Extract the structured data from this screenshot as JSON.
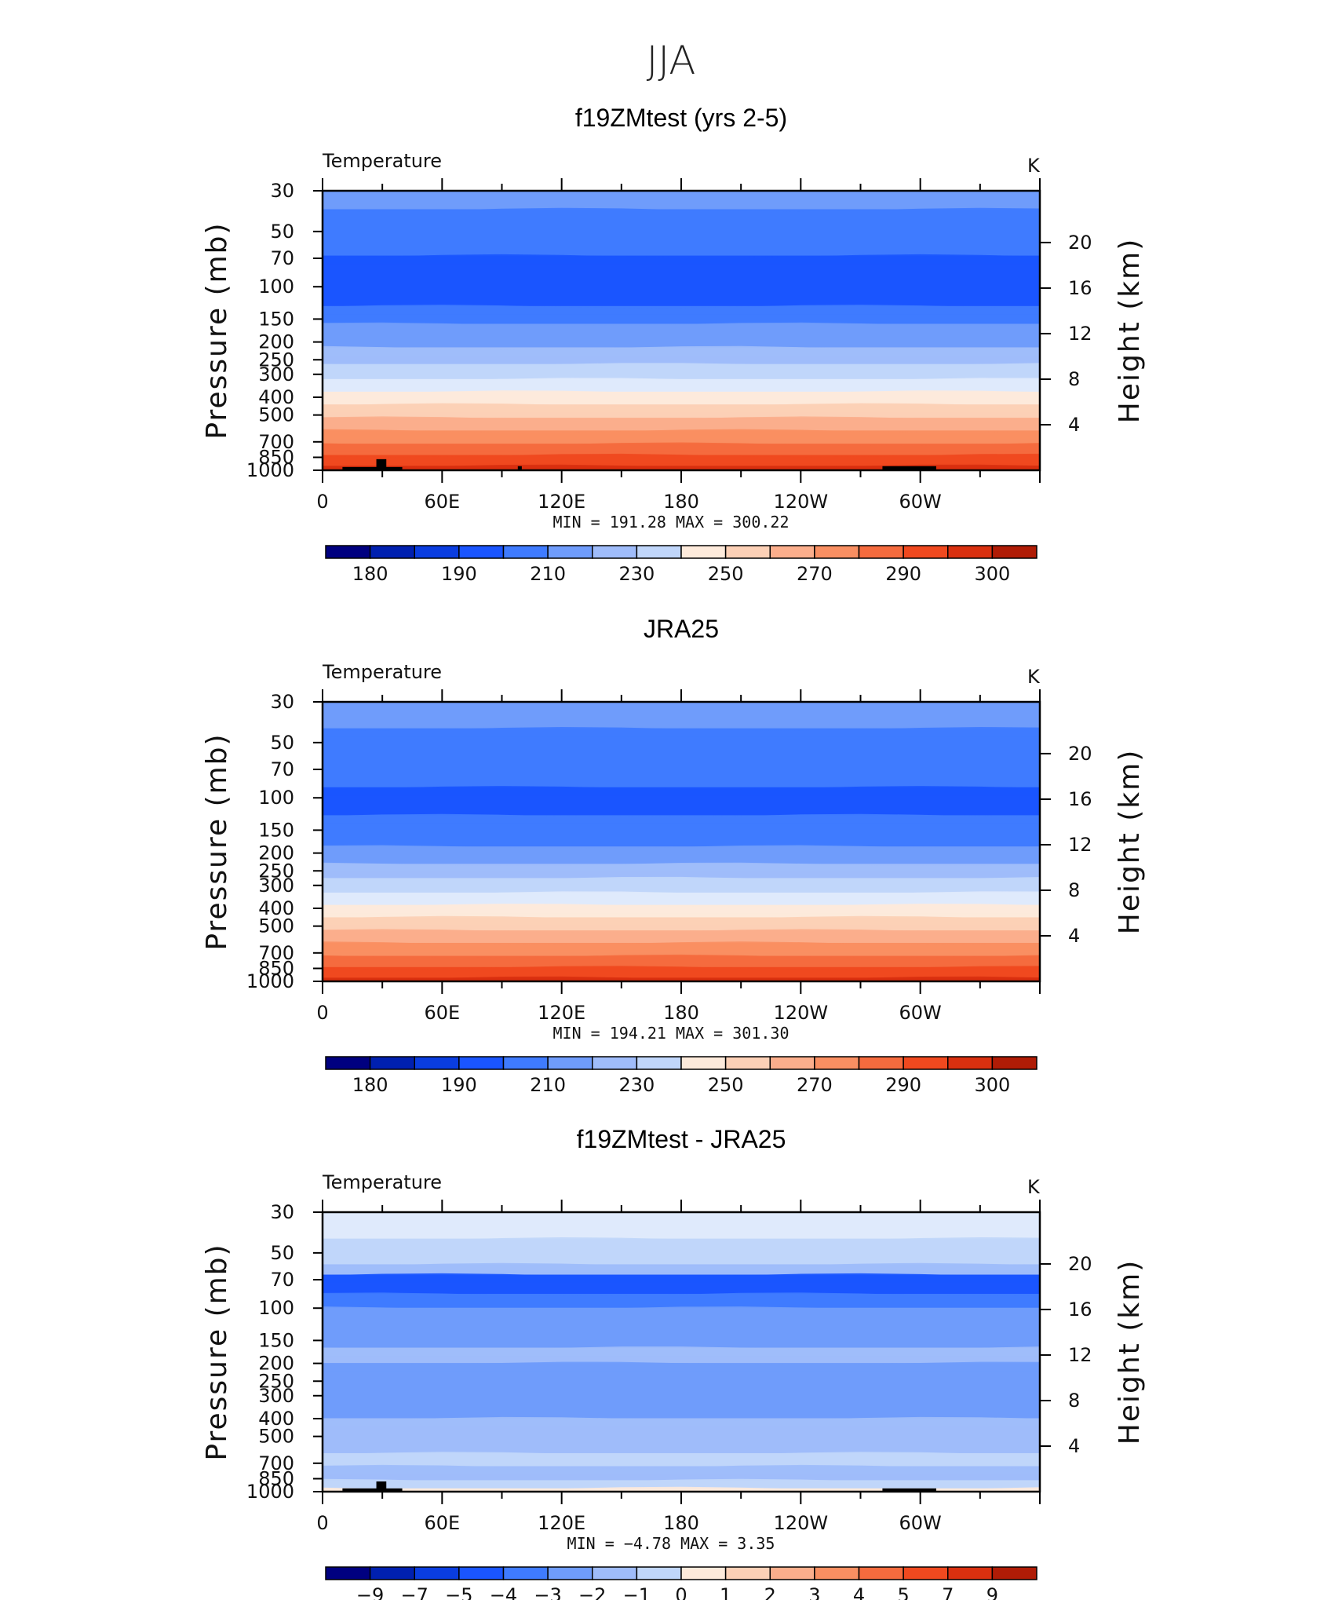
{
  "page_title": "JJA",
  "colors": [
    "#000080",
    "#0020b0",
    "#0a3de0",
    "#1a55ff",
    "#3f7bff",
    "#6f9cfb",
    "#9fbcfa",
    "#c0d6fa",
    "#dfeafc",
    "#fdeadb",
    "#fcd0b6",
    "#fbae8c",
    "#f98f62",
    "#f56b3e",
    "#f0491f",
    "#d9300f",
    "#b01c06",
    "#800000"
  ],
  "colors_diff": [
    "#000080",
    "#0020b0",
    "#0a3de0",
    "#1a55ff",
    "#3f7bff",
    "#6f9cfb",
    "#9fbcfa",
    "#c0d6fa",
    "#dfeafc",
    "#fdeadb",
    "#fcd0b6",
    "#fbae8c",
    "#f98f62",
    "#f56b3e",
    "#f0491f",
    "#d9300f",
    "#b01c06",
    "#800000"
  ],
  "chart_data": [
    {
      "type": "contour",
      "title": "f19ZMtest (yrs 2-5)",
      "left_label": "Temperature",
      "units": "K",
      "ylabel": "Pressure (mb)",
      "ylabel_right": "Height (km)",
      "pressure_ticks": [
        "30",
        "50",
        "70",
        "100",
        "150",
        "200",
        "250",
        "300",
        "400",
        "500",
        "700",
        "850",
        "1000"
      ],
      "height_ticks": [
        "20",
        "16",
        "12",
        "8",
        "4"
      ],
      "lon_ticks": [
        "0",
        "60E",
        "120E",
        "180",
        "120W",
        "60W"
      ],
      "stats": "MIN  =  191.28   MAX  =  300.22",
      "colorbar_labels": [
        "180",
        "190",
        "210",
        "230",
        "250",
        "270",
        "290",
        "300"
      ],
      "bands": [
        {
          "p_top": 30,
          "p_bot": 38,
          "color_index": 5
        },
        {
          "p_top": 38,
          "p_bot": 68,
          "color_index": 4
        },
        {
          "p_top": 68,
          "p_bot": 128,
          "color_index": 3
        },
        {
          "p_top": 128,
          "p_bot": 160,
          "color_index": 4
        },
        {
          "p_top": 160,
          "p_bot": 215,
          "color_index": 5
        },
        {
          "p_top": 215,
          "p_bot": 265,
          "color_index": 6
        },
        {
          "p_top": 265,
          "p_bot": 320,
          "color_index": 7
        },
        {
          "p_top": 320,
          "p_bot": 375,
          "color_index": 8
        },
        {
          "p_top": 375,
          "p_bot": 440,
          "color_index": 9
        },
        {
          "p_top": 440,
          "p_bot": 520,
          "color_index": 10
        },
        {
          "p_top": 520,
          "p_bot": 610,
          "color_index": 11
        },
        {
          "p_top": 610,
          "p_bot": 720,
          "color_index": 12
        },
        {
          "p_top": 720,
          "p_bot": 830,
          "color_index": 13
        },
        {
          "p_top": 830,
          "p_bot": 950,
          "color_index": 14
        },
        {
          "p_top": 950,
          "p_bot": 1000,
          "color_index": 15
        }
      ],
      "topography": [
        {
          "lon_start": 10,
          "lon_end": 40,
          "p_top": 960
        },
        {
          "lon_start": 27,
          "lon_end": 32,
          "p_top": 870
        },
        {
          "lon_start": 98,
          "lon_end": 100,
          "p_top": 950
        },
        {
          "lon_start": 281,
          "lon_end": 308,
          "p_top": 950
        }
      ]
    },
    {
      "type": "contour",
      "title": "JRA25",
      "left_label": "Temperature",
      "units": "K",
      "ylabel": "Pressure (mb)",
      "ylabel_right": "Height (km)",
      "pressure_ticks": [
        "30",
        "50",
        "70",
        "100",
        "150",
        "200",
        "250",
        "300",
        "400",
        "500",
        "700",
        "850",
        "1000"
      ],
      "height_ticks": [
        "20",
        "16",
        "12",
        "8",
        "4"
      ],
      "lon_ticks": [
        "0",
        "60E",
        "120E",
        "180",
        "120W",
        "60W"
      ],
      "stats": "MIN  =  194.21   MAX  =  301.30",
      "colorbar_labels": [
        "180",
        "190",
        "210",
        "230",
        "250",
        "270",
        "290",
        "300"
      ],
      "bands": [
        {
          "p_top": 30,
          "p_bot": 42,
          "color_index": 5
        },
        {
          "p_top": 42,
          "p_bot": 88,
          "color_index": 4
        },
        {
          "p_top": 88,
          "p_bot": 125,
          "color_index": 3
        },
        {
          "p_top": 125,
          "p_bot": 185,
          "color_index": 4
        },
        {
          "p_top": 185,
          "p_bot": 230,
          "color_index": 5
        },
        {
          "p_top": 230,
          "p_bot": 275,
          "color_index": 6
        },
        {
          "p_top": 275,
          "p_bot": 330,
          "color_index": 7
        },
        {
          "p_top": 330,
          "p_bot": 385,
          "color_index": 8
        },
        {
          "p_top": 385,
          "p_bot": 450,
          "color_index": 9
        },
        {
          "p_top": 450,
          "p_bot": 530,
          "color_index": 10
        },
        {
          "p_top": 530,
          "p_bot": 620,
          "color_index": 11
        },
        {
          "p_top": 620,
          "p_bot": 730,
          "color_index": 12
        },
        {
          "p_top": 730,
          "p_bot": 840,
          "color_index": 13
        },
        {
          "p_top": 840,
          "p_bot": 960,
          "color_index": 14
        },
        {
          "p_top": 960,
          "p_bot": 1000,
          "color_index": 15
        }
      ],
      "topography": []
    },
    {
      "type": "contour",
      "title": "f19ZMtest - JRA25",
      "left_label": "Temperature",
      "units": "K",
      "ylabel": "Pressure (mb)",
      "ylabel_right": "Height (km)",
      "pressure_ticks": [
        "30",
        "50",
        "70",
        "100",
        "150",
        "200",
        "250",
        "300",
        "400",
        "500",
        "700",
        "850",
        "1000"
      ],
      "height_ticks": [
        "20",
        "16",
        "12",
        "8",
        "4"
      ],
      "lon_ticks": [
        "0",
        "60E",
        "120E",
        "180",
        "120W",
        "60W"
      ],
      "stats": "MIN  =    −4.78   MAX  =      3.35",
      "colorbar_labels": [
        "−9",
        "−7",
        "−5",
        "−4",
        "−3",
        "−2",
        "−1",
        "0",
        "1",
        "2",
        "3",
        "4",
        "5",
        "7",
        "9"
      ],
      "bands": [
        {
          "p_top": 30,
          "p_bot": 42,
          "color_index": 8
        },
        {
          "p_top": 42,
          "p_bot": 58,
          "color_index": 7
        },
        {
          "p_top": 58,
          "p_bot": 66,
          "color_index": 6
        },
        {
          "p_top": 66,
          "p_bot": 84,
          "color_index": 3
        },
        {
          "p_top": 84,
          "p_bot": 100,
          "color_index": 4
        },
        {
          "p_top": 100,
          "p_bot": 165,
          "color_index": 5
        },
        {
          "p_top": 165,
          "p_bot": 200,
          "color_index": 6
        },
        {
          "p_top": 200,
          "p_bot": 400,
          "color_index": 5
        },
        {
          "p_top": 400,
          "p_bot": 620,
          "color_index": 6
        },
        {
          "p_top": 620,
          "p_bot": 730,
          "color_index": 7
        },
        {
          "p_top": 730,
          "p_bot": 870,
          "color_index": 6
        },
        {
          "p_top": 870,
          "p_bot": 960,
          "color_index": 7
        },
        {
          "p_top": 960,
          "p_bot": 1000,
          "color_index": 9
        }
      ],
      "topography": [
        {
          "lon_start": 10,
          "lon_end": 40,
          "p_top": 960
        },
        {
          "lon_start": 27,
          "lon_end": 32,
          "p_top": 880
        },
        {
          "lon_start": 281,
          "lon_end": 308,
          "p_top": 960
        }
      ]
    }
  ]
}
